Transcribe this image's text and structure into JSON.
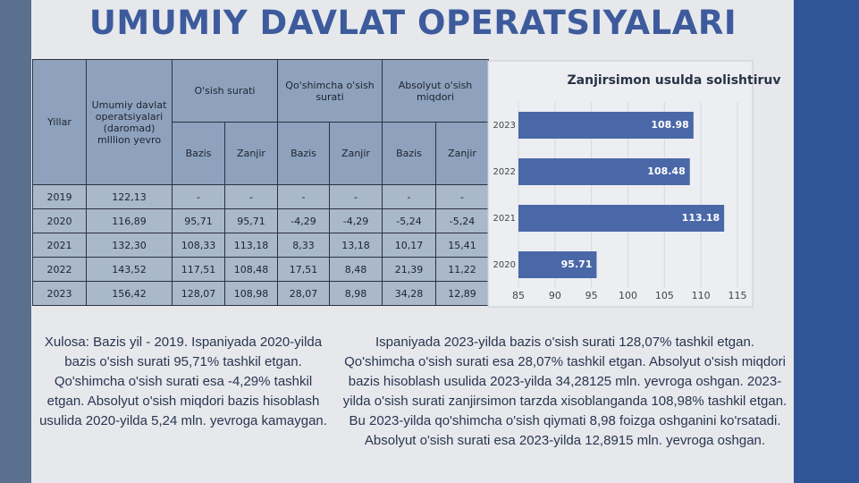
{
  "title": "UMUMIY DAVLAT OPERATSIYALARI",
  "table": {
    "header": {
      "year": "Yillar",
      "total": "Umumiy davlat operatsiyalari (daromad) mIllion yevro",
      "groups": [
        "O'sish surati",
        "Qo'shimcha o'sish surati",
        "Absolyut o'sish miqdori"
      ],
      "subheaders": [
        "Bazis",
        "Zanjir",
        "Bazis",
        "Zanjir",
        "Bazis",
        "Zanjir"
      ]
    },
    "rows": [
      [
        "2019",
        "122,13",
        "-",
        "-",
        "-",
        "-",
        "-",
        "-"
      ],
      [
        "2020",
        "116,89",
        "95,71",
        "95,71",
        "-4,29",
        "-4,29",
        "-5,24",
        "-5,24"
      ],
      [
        "2021",
        "132,30",
        "108,33",
        "113,18",
        "8,33",
        "13,18",
        "10,17",
        "15,41"
      ],
      [
        "2022",
        "143,52",
        "117,51",
        "108,48",
        "17,51",
        "8,48",
        "21,39",
        "11,22"
      ],
      [
        "2023",
        "156,42",
        "128,07",
        "108,98",
        "28,07",
        "8,98",
        "34,28",
        "12,89"
      ]
    ]
  },
  "chart_data": {
    "type": "bar",
    "orientation": "horizontal",
    "title": "Zanjirsimon usulda solishtiruv",
    "categories": [
      "2020",
      "2021",
      "2022",
      "2023"
    ],
    "values": [
      95.71,
      113.18,
      108.48,
      108.98
    ],
    "color": "#4a68a8",
    "xlim": [
      85,
      115
    ],
    "xticks": [
      85,
      90,
      95,
      100,
      105,
      110,
      115
    ],
    "grid": true
  },
  "notes": [
    "Xulosa: Bazis yil - 2019. Ispaniyada 2020-yilda bazis o'sish surati 95,71% tashkil etgan. Qo'shimcha o'sish surati esa -4,29% tashkil etgan. Absolyut o'sish miqdori bazis hisoblash usulida 2020-yilda 5,24 mln. yevroga kamaygan.",
    "Ispaniyada 2023-yilda bazis o'sish surati 128,07% tashkil etgan. Qo'shimcha o'sish surati esa 28,07% tashkil etgan. Absolyut o'sish miqdori bazis hisoblash usulida 2023-yilda 34,28125 mln. yevroga oshgan.  2023-yilda o'sish surati zanjirsimon tarzda xisoblanganda 108,98% tashkil etgan. Bu 2023-yilda qo'shimcha o'sish qiymati 8,98 foizga oshganini ko'rsatadi. Absolyut o'sish surati esa 2023-yilda 12,8915 mln. yevroga oshgan."
  ]
}
